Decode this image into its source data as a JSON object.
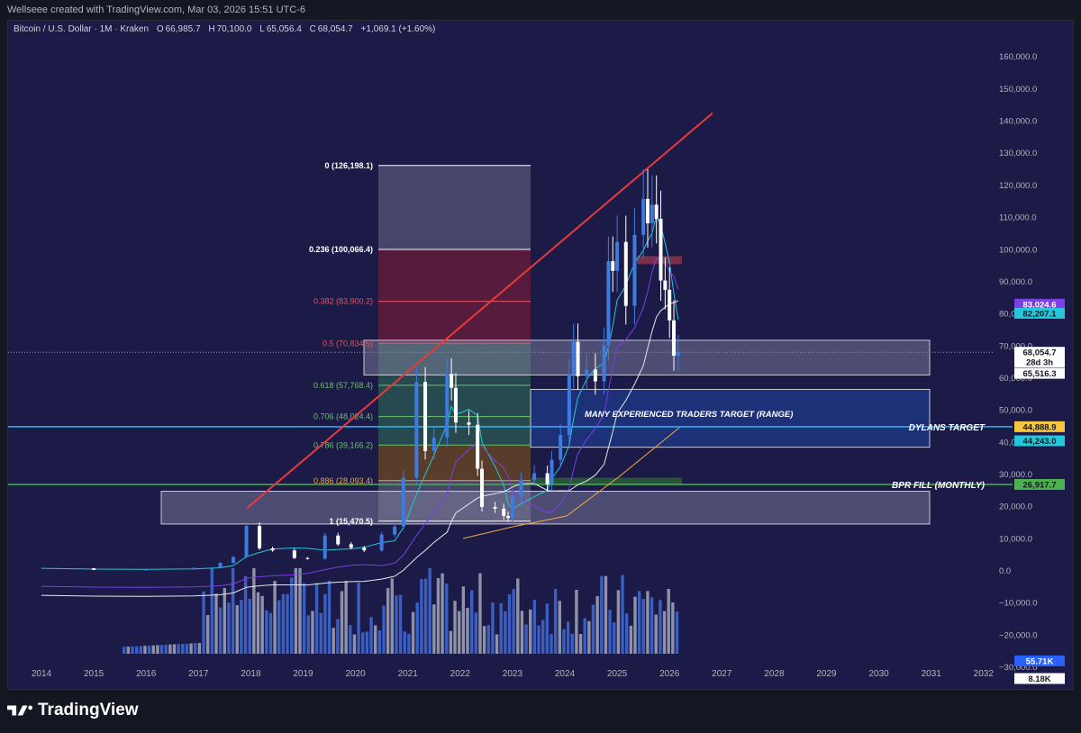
{
  "header": {
    "attribution": "Wellseee created with TradingView.com, Mar 03, 2026 15:51 UTC-6"
  },
  "legend": {
    "symbol": "Bitcoin / U.S. Dollar · 1M · Kraken",
    "open_label": "O",
    "open": "66,985.7",
    "high_label": "H",
    "high": "70,100.0",
    "low_label": "L",
    "low": "65,056.4",
    "close_label": "C",
    "close": "68,054.7",
    "change": "+1,069.1 (+1.60%)"
  },
  "footer": {
    "brand": "TradingView"
  },
  "colors": {
    "background": "#1c1a47",
    "up_candle": "#3d7be0",
    "down_candle": "#ffffff",
    "trendline": "#e83a3a",
    "fib_red_zone": "#6b1e3a",
    "fib_green_zone": "#2f6b57",
    "fib_orange_zone": "#6b4a20",
    "dylans_line": "#29b6f6",
    "bpr_line": "#4caf50",
    "target_box": "#1e3a8a"
  },
  "chart_data": {
    "type": "candlestick",
    "title": "Bitcoin / U.S. Dollar · 1M · Kraken",
    "x_ticks": [
      "2014",
      "2015",
      "2016",
      "2017",
      "2018",
      "2019",
      "2020",
      "2021",
      "2022",
      "2023",
      "2024",
      "2025",
      "2026",
      "2027",
      "2028",
      "2029",
      "2030",
      "2031",
      "2032"
    ],
    "y_ticks": [
      "160,000.0",
      "150,000.0",
      "140,000.0",
      "130,000.0",
      "120,000.0",
      "110,000.0",
      "100,000.0",
      "90,000.0",
      "80,000.0",
      "70,000.0",
      "60,000.0",
      "50,000.0",
      "40,000.0",
      "30,000.0",
      "20,000.0",
      "10,000.0",
      "0.0",
      "−10,000.0",
      "−20,000.0",
      "−30,000.0"
    ],
    "ylim": [
      -40000,
      165000
    ],
    "price_path": [
      [
        "2014-01",
        800
      ],
      [
        "2015-01",
        300
      ],
      [
        "2016-01",
        400
      ],
      [
        "2016-12",
        950
      ],
      [
        "2017-06",
        2500
      ],
      [
        "2017-09",
        4300
      ],
      [
        "2017-12",
        14000
      ],
      [
        "2018-03",
        7000
      ],
      [
        "2018-06",
        6400
      ],
      [
        "2018-11",
        4000
      ],
      [
        "2019-02",
        3800
      ],
      [
        "2019-06",
        11000
      ],
      [
        "2019-09",
        8300
      ],
      [
        "2019-12",
        7200
      ],
      [
        "2020-03",
        6400
      ],
      [
        "2020-07",
        11300
      ],
      [
        "2020-10",
        13800
      ],
      [
        "2020-12",
        29000
      ],
      [
        "2021-03",
        58800
      ],
      [
        "2021-05",
        37300
      ],
      [
        "2021-07",
        41500
      ],
      [
        "2021-10",
        61300
      ],
      [
        "2021-11",
        57000
      ],
      [
        "2021-12",
        46200
      ],
      [
        "2022-03",
        45500
      ],
      [
        "2022-05",
        31800
      ],
      [
        "2022-06",
        19900
      ],
      [
        "2022-09",
        19400
      ],
      [
        "2022-11",
        17100
      ],
      [
        "2022-12",
        16500
      ],
      [
        "2023-01",
        23100
      ],
      [
        "2023-03",
        28400
      ],
      [
        "2023-06",
        30400
      ],
      [
        "2023-09",
        27000
      ],
      [
        "2023-10",
        34600
      ],
      [
        "2023-12",
        42300
      ],
      [
        "2024-02",
        61100
      ],
      [
        "2024-03",
        71300
      ],
      [
        "2024-04",
        60600
      ],
      [
        "2024-06",
        62700
      ],
      [
        "2024-08",
        59000
      ],
      [
        "2024-10",
        70200
      ],
      [
        "2024-11",
        96400
      ],
      [
        "2024-12",
        93400
      ],
      [
        "2025-01",
        102400
      ],
      [
        "2025-03",
        82500
      ],
      [
        "2025-05",
        104600
      ],
      [
        "2025-07",
        115800
      ],
      [
        "2025-08",
        108200
      ],
      [
        "2025-09",
        114000
      ],
      [
        "2025-10",
        109600
      ],
      [
        "2025-11",
        90400
      ],
      [
        "2025-12",
        87500
      ],
      [
        "2026-01",
        78000
      ],
      [
        "2026-02",
        66985
      ],
      [
        "2026-03",
        68054
      ]
    ],
    "fib_levels": [
      {
        "ratio": "0",
        "label": "0 (126,198.1)",
        "price": 126198.1
      },
      {
        "ratio": "0.236",
        "label": "0.236 (100,066.4)",
        "price": 100066.4
      },
      {
        "ratio": "0.382",
        "label": "0.382 (83,900.2)",
        "price": 83900.2
      },
      {
        "ratio": "0.5",
        "label": "0.5 (70,834.5)",
        "price": 70834.5
      },
      {
        "ratio": "0.618",
        "label": "0.618 (57,768.4)",
        "price": 57768.4
      },
      {
        "ratio": "0.706",
        "label": "0.706 (48,024.4)",
        "price": 48024.4
      },
      {
        "ratio": "0.786",
        "label": "0.786 (39,166.2)",
        "price": 39166.2
      },
      {
        "ratio": "0.886",
        "label": "0.886 (28,093.4)",
        "price": 28093.4
      },
      {
        "ratio": "1",
        "label": "1 (15,470.5)",
        "price": 15470.5
      }
    ],
    "annotations": {
      "target_range": "MANY EXPERIENCED TRADERS TARGET (RANGE)",
      "dylans_target": "DYLANS TARGET",
      "bpr_fill": "BPR FILL (MONTHLY)"
    },
    "horizontal_lines": {
      "dylans_target": 44888.9,
      "bpr_fill": 26917.7
    },
    "price_tags": [
      {
        "value": "83,024.6",
        "bg": "#7b3fe4",
        "fg": "#ffffff",
        "price": 83024.6
      },
      {
        "value": "82,207.1",
        "bg": "#26c6da",
        "fg": "#131722",
        "price": 80200
      },
      {
        "value": "68,054.7",
        "bg": "#ffffff",
        "fg": "#131722",
        "price": 68054.7
      },
      {
        "value": "28d 3h",
        "bg": "#ffffff",
        "fg": "#131722",
        "price": 65000
      },
      {
        "value": "65,516.3",
        "bg": "#ffffff",
        "fg": "#131722",
        "price": 61500
      },
      {
        "value": "44,888.9",
        "bg": "#f5c542",
        "fg": "#131722",
        "price": 44888.9
      },
      {
        "value": "44,243.0",
        "bg": "#26c6da",
        "fg": "#131722",
        "price": 40500
      },
      {
        "value": "26,917.7",
        "bg": "#4caf50",
        "fg": "#131722",
        "price": 26917.7
      },
      {
        "value": "55.71K",
        "bg": "#2962ff",
        "fg": "#ffffff",
        "price": -28000
      },
      {
        "value": "8.18K",
        "bg": "#ffffff",
        "fg": "#131722",
        "price": -33500
      }
    ]
  }
}
